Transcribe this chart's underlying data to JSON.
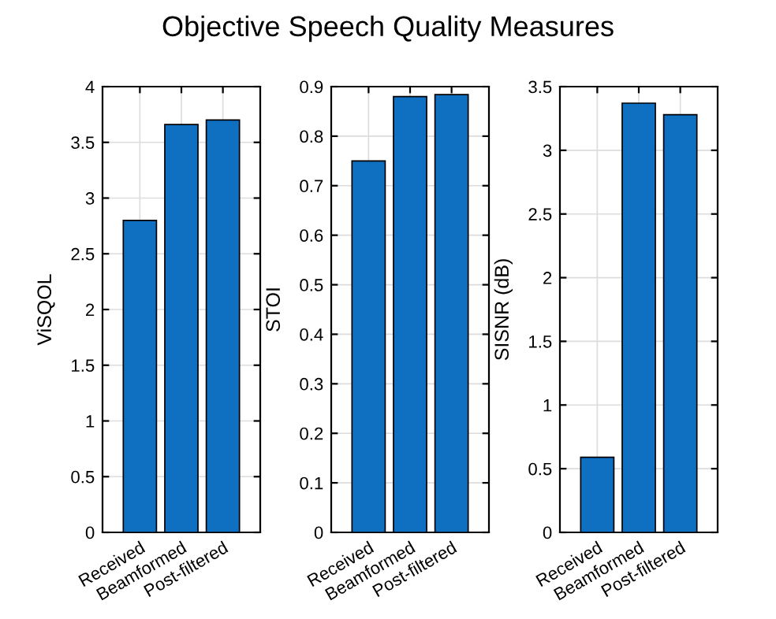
{
  "chart_data": [
    {
      "type": "bar",
      "title": "Objective Speech Quality Measures",
      "ylabel": "ViSQOL",
      "categories": [
        "Received",
        "Beamformed",
        "Post-filtered"
      ],
      "values": [
        2.8,
        3.66,
        3.7
      ],
      "color": "#0f6fc0",
      "ylim": [
        0,
        4
      ],
      "yticks": [
        0,
        0.5,
        1,
        1.5,
        2,
        2.5,
        3,
        3.5,
        4
      ],
      "grid": true
    },
    {
      "type": "bar",
      "ylabel": "STOI",
      "categories": [
        "Received",
        "Beamformed",
        "Post-filtered"
      ],
      "values": [
        0.75,
        0.88,
        0.884
      ],
      "color": "#0f6fc0",
      "ylim": [
        0,
        0.9
      ],
      "yticks": [
        0,
        0.1,
        0.2,
        0.3,
        0.4,
        0.5,
        0.6,
        0.7,
        0.8,
        0.9
      ],
      "grid": true
    },
    {
      "type": "bar",
      "ylabel": "SISNR (dB)",
      "categories": [
        "Received",
        "Beamformed",
        "Post-filtered"
      ],
      "values": [
        0.59,
        3.37,
        3.28
      ],
      "color": "#0f6fc0",
      "ylim": [
        0,
        3.5
      ],
      "yticks": [
        0,
        0.5,
        1,
        1.5,
        2,
        2.5,
        3,
        3.5
      ],
      "grid": true
    }
  ]
}
